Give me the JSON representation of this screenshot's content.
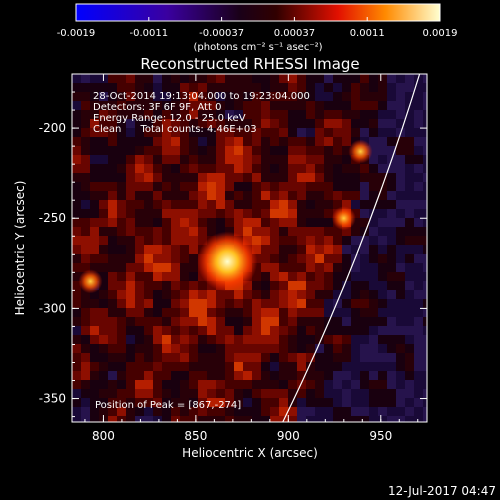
{
  "window": {
    "timestamp": "12-Jul-2017 04:47"
  },
  "colorbar": {
    "ticks": [
      "-0.0019",
      "-0.0011",
      "-0.00037",
      "0.00037",
      "0.0011",
      "0.0019"
    ],
    "unit_label": "(photons cm⁻² s⁻¹ asec⁻²)",
    "range": [
      -0.0019,
      0.0019
    ]
  },
  "chart_data": {
    "type": "heatmap",
    "title": "Reconstructed RHESSI Image",
    "xlabel": "Heliocentric X (arcsec)",
    "ylabel": "Heliocentric Y (arcsec)",
    "xlim": [
      783,
      975
    ],
    "ylim": [
      -363,
      -170
    ],
    "x_ticks": [
      "800",
      "850",
      "900",
      "950"
    ],
    "y_ticks": [
      "-200",
      "-250",
      "-300",
      "-350"
    ],
    "annotations": [
      "28-Oct-2014 19:13:04.000 to 19:23:04.000",
      "Detectors: 3F 6F 9F, Att 0",
      "Energy Range: 12.0 - 25.0 keV",
      "Clean      Total counts: 4.46E+03"
    ],
    "peak_label": "Position of Peak = [867,-274]",
    "peak": [
      867,
      -274
    ],
    "secondary_sources": [
      [
        939,
        -213
      ],
      [
        930,
        -250
      ],
      [
        793,
        -285
      ]
    ],
    "limb_line": "white",
    "colors": {
      "background": "#000000",
      "text": "#ffffff"
    }
  }
}
